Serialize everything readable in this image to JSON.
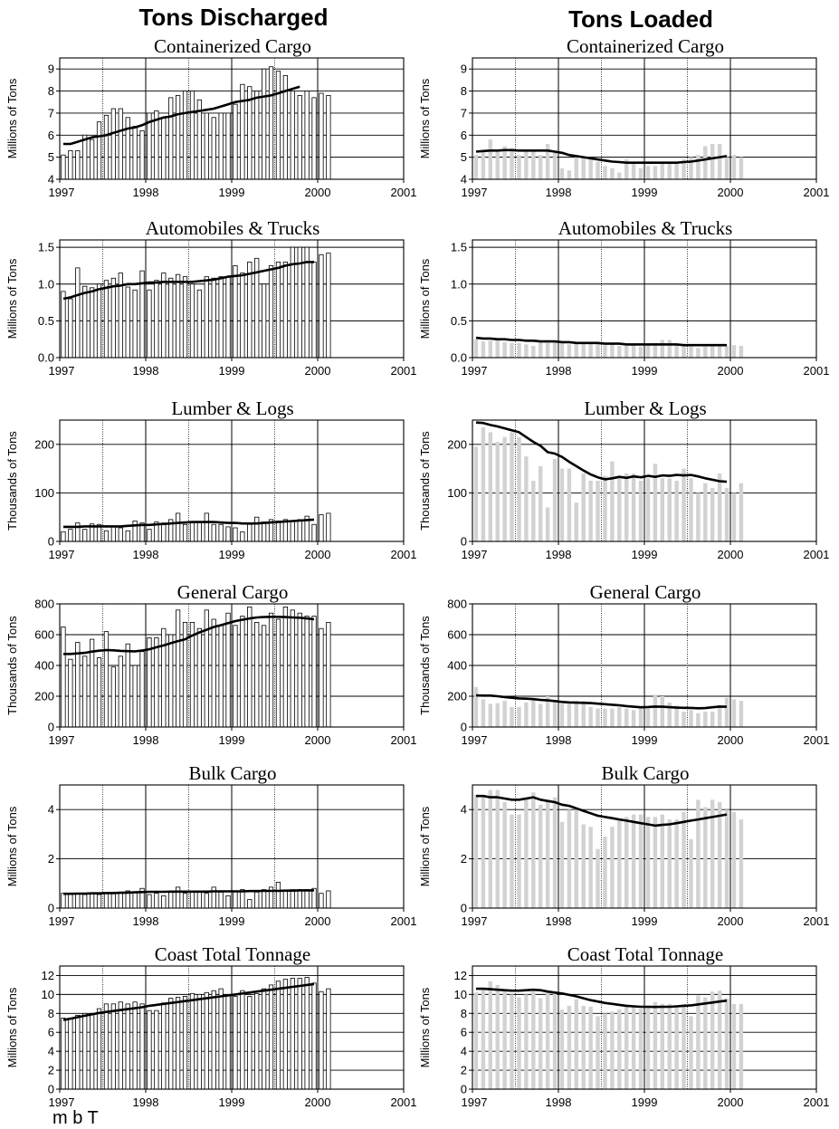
{
  "headers": {
    "left": "Tons Discharged",
    "right": "Tons Loaded"
  },
  "caption": "m b  T                         ",
  "colors": {
    "discharged_bar": "#ffffff",
    "loaded_bar": "#d2d2d2",
    "trend": "#000000",
    "grid": "#000000"
  },
  "x_ticks": [
    "1997",
    "1998",
    "1999",
    "2000",
    "2001"
  ],
  "chart_data": [
    {
      "type": "bar",
      "column": "Tons Discharged",
      "title": "Containerized Cargo",
      "ylabel": "Millions of Tons",
      "ylim": [
        4,
        9.5
      ],
      "yticks": [
        4,
        5,
        6,
        7,
        8,
        9
      ],
      "ytick_labels": [
        "4",
        "5",
        "6",
        "7",
        "8",
        "9"
      ],
      "x_start": 1997,
      "months": 38,
      "values": [
        5.1,
        5.3,
        5.3,
        6.0,
        5.8,
        6.6,
        6.9,
        7.2,
        7.2,
        6.8,
        6.4,
        6.2,
        7.0,
        7.1,
        6.8,
        7.7,
        7.8,
        8.0,
        8.0,
        7.6,
        7.0,
        6.8,
        7.0,
        7.0,
        7.4,
        8.3,
        8.2,
        8.0,
        9.0,
        9.1,
        8.9,
        8.7,
        8.0,
        7.8,
        8.0,
        7.7,
        7.9,
        7.8
      ],
      "trend": [
        5.6,
        5.6,
        5.7,
        5.8,
        5.9,
        5.95,
        6.0,
        6.1,
        6.2,
        6.3,
        6.35,
        6.45,
        6.6,
        6.7,
        6.8,
        6.85,
        6.95,
        7.0,
        7.05,
        7.1,
        7.15,
        7.2,
        7.3,
        7.4,
        7.5,
        7.55,
        7.6,
        7.7,
        7.75,
        7.8,
        7.9,
        8.0,
        8.1,
        8.2
      ]
    },
    {
      "type": "bar",
      "column": "Tons Loaded",
      "title": "Containerized Cargo",
      "ylabel": "Millions of Tons",
      "ylim": [
        4,
        9.5
      ],
      "yticks": [
        4,
        5,
        6,
        7,
        8,
        9
      ],
      "ytick_labels": [
        "4",
        "5",
        "6",
        "7",
        "8",
        "9"
      ],
      "x_start": 1997,
      "months": 38,
      "values": [
        5.1,
        5.3,
        5.8,
        5.3,
        5.5,
        5.4,
        5.1,
        5.3,
        5.3,
        5.1,
        5.6,
        5.2,
        4.5,
        4.4,
        5.0,
        5.0,
        4.9,
        4.8,
        4.6,
        4.5,
        4.3,
        4.9,
        4.7,
        4.5,
        4.6,
        4.6,
        4.8,
        4.8,
        4.7,
        4.9,
        5.0,
        5.1,
        5.5,
        5.6,
        5.6,
        5.0,
        5.1,
        5.0
      ],
      "trend": [
        5.25,
        5.28,
        5.3,
        5.3,
        5.32,
        5.32,
        5.3,
        5.3,
        5.3,
        5.3,
        5.3,
        5.25,
        5.2,
        5.1,
        5.05,
        5.0,
        4.95,
        4.9,
        4.85,
        4.8,
        4.78,
        4.75,
        4.75,
        4.75,
        4.75,
        4.75,
        4.75,
        4.75,
        4.75,
        4.78,
        4.8,
        4.85,
        4.9,
        4.95,
        5.0,
        5.05
      ]
    },
    {
      "type": "bar",
      "column": "Tons Discharged",
      "title": "Automobiles & Trucks",
      "ylabel": "Millions of Tons",
      "ylim": [
        0,
        1.6
      ],
      "yticks": [
        0,
        0.5,
        1.0,
        1.5
      ],
      "ytick_labels": [
        "0.0",
        "0.5",
        "1.0",
        "1.5"
      ],
      "x_start": 1997,
      "months": 38,
      "values": [
        0.9,
        0.8,
        1.22,
        0.97,
        0.95,
        1.0,
        1.05,
        1.08,
        1.15,
        0.96,
        0.92,
        1.18,
        0.92,
        1.05,
        1.15,
        1.08,
        1.13,
        1.1,
        1.0,
        0.92,
        1.1,
        1.08,
        1.1,
        1.1,
        1.25,
        1.15,
        1.3,
        1.35,
        1.0,
        1.25,
        1.3,
        1.3,
        1.5,
        1.5,
        1.5,
        1.3,
        1.4,
        1.42
      ],
      "trend": [
        0.8,
        0.82,
        0.85,
        0.88,
        0.9,
        0.93,
        0.95,
        0.97,
        0.98,
        1.0,
        1.0,
        1.01,
        1.02,
        1.02,
        1.03,
        1.03,
        1.03,
        1.03,
        1.03,
        1.04,
        1.05,
        1.06,
        1.08,
        1.1,
        1.11,
        1.12,
        1.14,
        1.16,
        1.18,
        1.2,
        1.22,
        1.25,
        1.27,
        1.28,
        1.3,
        1.3
      ]
    },
    {
      "type": "bar",
      "column": "Tons Loaded",
      "title": "Automobiles & Trucks",
      "ylabel": "Millions of Tons",
      "ylim": [
        0,
        1.6
      ],
      "yticks": [
        0,
        0.5,
        1.0,
        1.5
      ],
      "ytick_labels": [
        "0.0",
        "0.5",
        "1.0",
        "1.5"
      ],
      "x_start": 1997,
      "months": 38,
      "values": [
        0.25,
        0.22,
        0.23,
        0.24,
        0.21,
        0.2,
        0.2,
        0.18,
        0.16,
        0.21,
        0.2,
        0.22,
        0.2,
        0.18,
        0.19,
        0.2,
        0.21,
        0.19,
        0.17,
        0.18,
        0.16,
        0.16,
        0.18,
        0.15,
        0.17,
        0.2,
        0.24,
        0.24,
        0.18,
        0.17,
        0.15,
        0.13,
        0.15,
        0.17,
        0.17,
        0.16,
        0.17,
        0.16
      ],
      "trend": [
        0.27,
        0.26,
        0.26,
        0.25,
        0.25,
        0.24,
        0.24,
        0.23,
        0.23,
        0.22,
        0.22,
        0.22,
        0.21,
        0.21,
        0.2,
        0.2,
        0.2,
        0.2,
        0.19,
        0.19,
        0.19,
        0.18,
        0.18,
        0.18,
        0.18,
        0.18,
        0.18,
        0.18,
        0.18,
        0.17,
        0.17,
        0.17,
        0.17,
        0.17,
        0.17,
        0.17
      ]
    },
    {
      "type": "bar",
      "column": "Tons Discharged",
      "title": "Lumber & Logs",
      "ylabel": "Thousands of Tons",
      "ylim": [
        0,
        250
      ],
      "yticks": [
        0,
        100,
        200
      ],
      "ytick_labels": [
        "0",
        "100",
        "200"
      ],
      "x_start": 1997,
      "months": 38,
      "values": [
        20,
        25,
        38,
        25,
        36,
        35,
        22,
        30,
        28,
        22,
        42,
        38,
        25,
        40,
        38,
        45,
        58,
        35,
        38,
        40,
        58,
        35,
        35,
        30,
        28,
        20,
        35,
        50,
        40,
        45,
        42,
        45,
        42,
        45,
        52,
        35,
        55,
        58
      ],
      "trend": [
        30,
        30,
        30,
        31,
        31,
        31,
        31,
        31,
        31,
        32,
        33,
        34,
        34,
        35,
        36,
        37,
        38,
        39,
        40,
        40,
        40,
        40,
        39,
        38,
        38,
        37,
        37,
        37,
        38,
        39,
        40,
        41,
        42,
        43,
        44,
        45
      ]
    },
    {
      "type": "bar",
      "column": "Tons Loaded",
      "title": "Lumber & Logs",
      "ylabel": "Thousands of Tons",
      "ylim": [
        0,
        250
      ],
      "yticks": [
        0,
        100,
        200
      ],
      "ytick_labels": [
        "0",
        "100",
        "200"
      ],
      "x_start": 1997,
      "months": 38,
      "values": [
        195,
        235,
        225,
        205,
        215,
        225,
        215,
        175,
        125,
        155,
        70,
        170,
        150,
        150,
        80,
        140,
        125,
        125,
        135,
        165,
        130,
        140,
        140,
        125,
        130,
        160,
        130,
        130,
        125,
        150,
        130,
        100,
        120,
        110,
        140,
        110,
        100,
        120
      ],
      "trend": [
        245,
        244,
        240,
        237,
        233,
        229,
        225,
        215,
        205,
        197,
        184,
        181,
        174,
        164,
        155,
        146,
        138,
        132,
        128,
        130,
        133,
        131,
        134,
        132,
        135,
        133,
        136,
        135,
        137,
        136,
        137,
        134,
        130,
        127,
        124,
        123
      ]
    },
    {
      "type": "bar",
      "column": "Tons Discharged",
      "title": "General Cargo",
      "ylabel": "Thousands of Tons",
      "ylim": [
        0,
        800
      ],
      "yticks": [
        0,
        200,
        400,
        600,
        800
      ],
      "ytick_labels": [
        "0",
        "200",
        "400",
        "600",
        "800"
      ],
      "x_start": 1997,
      "months": 38,
      "values": [
        650,
        440,
        550,
        460,
        570,
        450,
        620,
        390,
        460,
        540,
        400,
        490,
        580,
        580,
        640,
        600,
        760,
        680,
        680,
        640,
        760,
        700,
        660,
        740,
        660,
        720,
        780,
        680,
        660,
        740,
        700,
        780,
        760,
        740,
        720,
        720,
        640,
        680
      ],
      "trend": [
        475,
        475,
        478,
        482,
        490,
        496,
        500,
        498,
        495,
        493,
        492,
        497,
        505,
        518,
        530,
        545,
        558,
        570,
        595,
        615,
        632,
        650,
        662,
        675,
        688,
        697,
        705,
        712,
        715,
        716,
        716,
        714,
        712,
        710,
        705,
        700
      ]
    },
    {
      "type": "bar",
      "column": "Tons Loaded",
      "title": "General Cargo",
      "ylabel": "Thousands of Tons",
      "ylim": [
        0,
        800
      ],
      "yticks": [
        0,
        200,
        400,
        600,
        800
      ],
      "ytick_labels": [
        "0",
        "200",
        "400",
        "600",
        "800"
      ],
      "x_start": 1997,
      "months": 38,
      "values": [
        260,
        180,
        150,
        155,
        170,
        130,
        130,
        160,
        180,
        150,
        200,
        170,
        150,
        160,
        170,
        170,
        130,
        120,
        120,
        120,
        130,
        120,
        110,
        130,
        120,
        210,
        200,
        160,
        140,
        100,
        110,
        90,
        100,
        100,
        140,
        190,
        180,
        170
      ],
      "trend": [
        205,
        204,
        204,
        200,
        195,
        190,
        186,
        184,
        181,
        176,
        173,
        169,
        163,
        160,
        158,
        157,
        155,
        152,
        148,
        145,
        141,
        136,
        132,
        128,
        130,
        133,
        132,
        129,
        126,
        125,
        124,
        122,
        123,
        128,
        133,
        132
      ]
    },
    {
      "type": "bar",
      "column": "Tons Discharged",
      "title": "Bulk Cargo",
      "ylabel": "Millions of Tons",
      "ylim": [
        0,
        5
      ],
      "yticks": [
        0,
        2,
        4
      ],
      "ytick_labels": [
        "0",
        "2",
        "4"
      ],
      "x_start": 1997,
      "months": 38,
      "values": [
        0.6,
        0.55,
        0.6,
        0.55,
        0.6,
        0.55,
        0.6,
        0.6,
        0.65,
        0.7,
        0.65,
        0.8,
        0.55,
        0.6,
        0.5,
        0.65,
        0.85,
        0.6,
        0.7,
        0.7,
        0.6,
        0.85,
        0.65,
        0.5,
        0.7,
        0.75,
        0.35,
        0.65,
        0.75,
        0.85,
        1.05,
        0.7,
        0.75,
        0.75,
        0.75,
        0.8,
        0.6,
        0.7
      ],
      "trend": [
        0.58,
        0.58,
        0.59,
        0.59,
        0.6,
        0.6,
        0.61,
        0.61,
        0.62,
        0.63,
        0.64,
        0.65,
        0.66,
        0.66,
        0.66,
        0.67,
        0.67,
        0.67,
        0.67,
        0.67,
        0.67,
        0.68,
        0.68,
        0.68,
        0.68,
        0.68,
        0.69,
        0.69,
        0.7,
        0.7,
        0.7,
        0.71,
        0.71,
        0.72,
        0.72,
        0.72
      ]
    },
    {
      "type": "bar",
      "column": "Tons Loaded",
      "title": "Bulk Cargo",
      "ylabel": "Millions of Tons",
      "ylim": [
        0,
        5
      ],
      "yticks": [
        0,
        2,
        4
      ],
      "ytick_labels": [
        "0",
        "2",
        "4"
      ],
      "x_start": 1997,
      "months": 38,
      "values": [
        4.6,
        4.5,
        4.8,
        4.8,
        4.3,
        3.8,
        3.8,
        4.5,
        4.7,
        4.2,
        4.4,
        4.5,
        3.5,
        4.0,
        4.0,
        3.4,
        3.3,
        2.4,
        2.9,
        3.3,
        3.6,
        3.7,
        3.8,
        3.8,
        3.7,
        3.7,
        3.8,
        3.6,
        3.6,
        3.9,
        2.8,
        4.4,
        4.1,
        4.4,
        4.3,
        4.0,
        3.9,
        3.6
      ],
      "trend": [
        4.55,
        4.55,
        4.5,
        4.5,
        4.45,
        4.4,
        4.4,
        4.45,
        4.5,
        4.4,
        4.35,
        4.3,
        4.2,
        4.15,
        4.05,
        3.95,
        3.85,
        3.75,
        3.7,
        3.65,
        3.6,
        3.55,
        3.5,
        3.45,
        3.4,
        3.35,
        3.38,
        3.4,
        3.45,
        3.5,
        3.55,
        3.6,
        3.65,
        3.7,
        3.75,
        3.8
      ]
    },
    {
      "type": "bar",
      "column": "Tons Discharged",
      "title": "Coast Total Tonnage",
      "ylabel": "Millions of Tons",
      "ylim": [
        0,
        13
      ],
      "yticks": [
        0,
        2,
        4,
        6,
        8,
        10,
        12
      ],
      "ytick_labels": [
        "0",
        "2",
        "4",
        "6",
        "8",
        "10",
        "12"
      ],
      "x_start": 1997,
      "months": 38,
      "values": [
        7.5,
        7.5,
        7.8,
        8.0,
        8.0,
        8.5,
        9.0,
        9.0,
        9.2,
        9.0,
        9.2,
        9.0,
        8.3,
        8.3,
        9.1,
        9.6,
        9.7,
        9.8,
        10.1,
        10.0,
        10.2,
        10.4,
        10.6,
        10.0,
        9.8,
        10.4,
        9.8,
        10.1,
        10.6,
        11.0,
        11.4,
        11.6,
        11.7,
        11.7,
        11.8,
        11.2,
        10.3,
        10.6
      ],
      "trend": [
        7.3,
        7.45,
        7.6,
        7.75,
        7.9,
        8.05,
        8.15,
        8.25,
        8.35,
        8.45,
        8.55,
        8.65,
        8.8,
        8.9,
        9.0,
        9.1,
        9.2,
        9.3,
        9.4,
        9.5,
        9.6,
        9.7,
        9.8,
        9.9,
        10.0,
        10.1,
        10.2,
        10.3,
        10.4,
        10.5,
        10.6,
        10.7,
        10.8,
        10.9,
        11.0,
        11.1
      ]
    },
    {
      "type": "bar",
      "column": "Tons Loaded",
      "title": "Coast Total Tonnage",
      "ylabel": "Millions of Tons",
      "ylim": [
        0,
        13
      ],
      "yticks": [
        0,
        2,
        4,
        6,
        8,
        10,
        12
      ],
      "ytick_labels": [
        "0",
        "2",
        "4",
        "6",
        "8",
        "10",
        "12"
      ],
      "x_start": 1997,
      "months": 38,
      "values": [
        10.2,
        10.5,
        11.4,
        11.0,
        10.5,
        10.0,
        9.7,
        10.0,
        10.3,
        9.6,
        10.3,
        10.2,
        8.4,
        8.8,
        9.5,
        8.8,
        8.7,
        7.7,
        8.0,
        8.2,
        8.4,
        8.7,
        8.7,
        8.5,
        8.8,
        9.2,
        9.0,
        9.0,
        8.7,
        9.0,
        7.7,
        9.9,
        9.7,
        10.3,
        10.4,
        9.6,
        9.0,
        9.0
      ],
      "trend": [
        10.6,
        10.6,
        10.55,
        10.5,
        10.45,
        10.4,
        10.4,
        10.45,
        10.5,
        10.45,
        10.3,
        10.2,
        10.1,
        9.95,
        9.8,
        9.6,
        9.4,
        9.25,
        9.1,
        9.0,
        8.9,
        8.8,
        8.75,
        8.7,
        8.7,
        8.68,
        8.7,
        8.7,
        8.75,
        8.8,
        8.85,
        8.95,
        9.05,
        9.15,
        9.25,
        9.35
      ]
    }
  ]
}
